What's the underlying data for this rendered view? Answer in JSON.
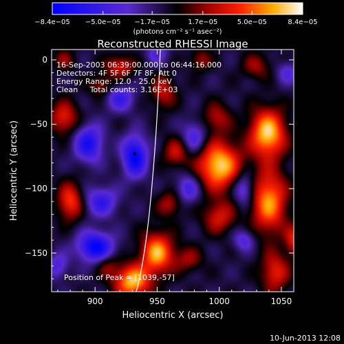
{
  "chart_data": {
    "type": "heatmap",
    "title": "Reconstructed RHESSI Image",
    "xlabel": "Heliocentric X (arcsec)",
    "ylabel": "Heliocentric Y (arcsec)",
    "xlim": [
      865,
      1060
    ],
    "ylim": [
      -180,
      8
    ],
    "x_ticks": [
      "900",
      "950",
      "1000",
      "1050"
    ],
    "x_tick_values": [
      900,
      950,
      1000,
      1050
    ],
    "y_ticks": [
      "0",
      "−50",
      "−100",
      "−150"
    ],
    "y_tick_values": [
      0,
      -50,
      -100,
      -150
    ],
    "colorbar": {
      "ticks": [
        "−8.4e−05",
        "−5.0e−05",
        "−1.7e−05",
        "1.7e−05",
        "5.0e−05",
        "8.4e−05"
      ],
      "tick_values": [
        -8.4e-05,
        -5e-05,
        -1.7e-05,
        1.7e-05,
        5e-05,
        8.4e-05
      ],
      "range": [
        -8.4e-05,
        8.4e-05
      ],
      "unit": "(photons cm⁻² s⁻¹ asec⁻²)"
    },
    "annotations": [
      "16-Sep-2003 06:39:00.000 to 06:44:16.000",
      "Detectors: 4F 5F 6F 7F 8F, Att 0",
      "Energy Range: 12.0 - 25.0 keV",
      "Clean     Total counts: 3.16E+03"
    ],
    "peak_label": "Position of Peak = [1039,-57]",
    "peak": [
      1039,
      -57
    ],
    "marker": [
      932,
      -73
    ],
    "peak_scale": 8.4e-05,
    "blobs": [
      {
        "x": 1000,
        "y": -82,
        "w": 1.0,
        "sx": 12,
        "sy": 13
      },
      {
        "x": 1000,
        "y": -122,
        "w": 0.5,
        "sx": 9,
        "sy": 9
      },
      {
        "x": 998,
        "y": -45,
        "w": 0.4,
        "sx": 8,
        "sy": 8
      },
      {
        "x": 1039,
        "y": -57,
        "w": 1.0,
        "sx": 10,
        "sy": 13
      },
      {
        "x": 1040,
        "y": -110,
        "w": 0.85,
        "sx": 10,
        "sy": 17
      },
      {
        "x": 1045,
        "y": -165,
        "w": 0.55,
        "sx": 8,
        "sy": 11
      },
      {
        "x": 1030,
        "y": -5,
        "w": 0.35,
        "sx": 8,
        "sy": 7
      },
      {
        "x": 950,
        "y": -150,
        "w": 0.9,
        "sx": 9,
        "sy": 11
      },
      {
        "x": 930,
        "y": -172,
        "w": 0.95,
        "sx": 10,
        "sy": 9
      },
      {
        "x": 975,
        "y": -155,
        "w": 0.35,
        "sx": 8,
        "sy": 7
      },
      {
        "x": 955,
        "y": -25,
        "w": 0.45,
        "sx": 7,
        "sy": 9
      },
      {
        "x": 965,
        "y": -72,
        "w": 0.45,
        "sx": 7,
        "sy": 8
      },
      {
        "x": 960,
        "y": -112,
        "w": 0.4,
        "sx": 7,
        "sy": 7
      },
      {
        "x": 880,
        "y": -110,
        "w": 0.65,
        "sx": 7,
        "sy": 10
      },
      {
        "x": 875,
        "y": -45,
        "w": 0.55,
        "sx": 8,
        "sy": 9
      },
      {
        "x": 875,
        "y": 0,
        "w": 0.3,
        "sx": 6,
        "sy": 6
      },
      {
        "x": 905,
        "y": -20,
        "w": 0.35,
        "sx": 7,
        "sy": 6
      },
      {
        "x": 920,
        "y": -5,
        "w": 0.5,
        "sx": 8,
        "sy": 6
      },
      {
        "x": 910,
        "y": -160,
        "w": 0.3,
        "sx": 6,
        "sy": 6
      },
      {
        "x": 1060,
        "y": -140,
        "w": 0.5,
        "sx": 5,
        "sy": 8
      },
      {
        "x": 985,
        "y": 0,
        "w": 0.35,
        "sx": 6,
        "sy": 6
      },
      {
        "x": 895,
        "y": -65,
        "w": -0.7,
        "sx": 8,
        "sy": 10
      },
      {
        "x": 900,
        "y": -145,
        "w": -0.85,
        "sx": 10,
        "sy": 8
      },
      {
        "x": 932,
        "y": -75,
        "w": -0.85,
        "sx": 7,
        "sy": 11
      },
      {
        "x": 905,
        "y": -110,
        "w": -0.55,
        "sx": 9,
        "sy": 8
      },
      {
        "x": 920,
        "y": -30,
        "w": -0.5,
        "sx": 8,
        "sy": 7
      },
      {
        "x": 980,
        "y": -60,
        "w": -0.45,
        "sx": 7,
        "sy": 9
      },
      {
        "x": 975,
        "y": -100,
        "w": -0.45,
        "sx": 7,
        "sy": 8
      },
      {
        "x": 1020,
        "y": -100,
        "w": -0.5,
        "sx": 6,
        "sy": 9
      },
      {
        "x": 1020,
        "y": -140,
        "w": -0.4,
        "sx": 6,
        "sy": 6
      },
      {
        "x": 1055,
        "y": -10,
        "w": -0.35,
        "sx": 6,
        "sy": 6
      },
      {
        "x": 950,
        "y": 5,
        "w": -0.35,
        "sx": 6,
        "sy": 6
      },
      {
        "x": 870,
        "y": -160,
        "w": -0.4,
        "sx": 6,
        "sy": 7
      }
    ]
  },
  "footer": {
    "timestamp": "10-Jun-2013 12:08"
  }
}
